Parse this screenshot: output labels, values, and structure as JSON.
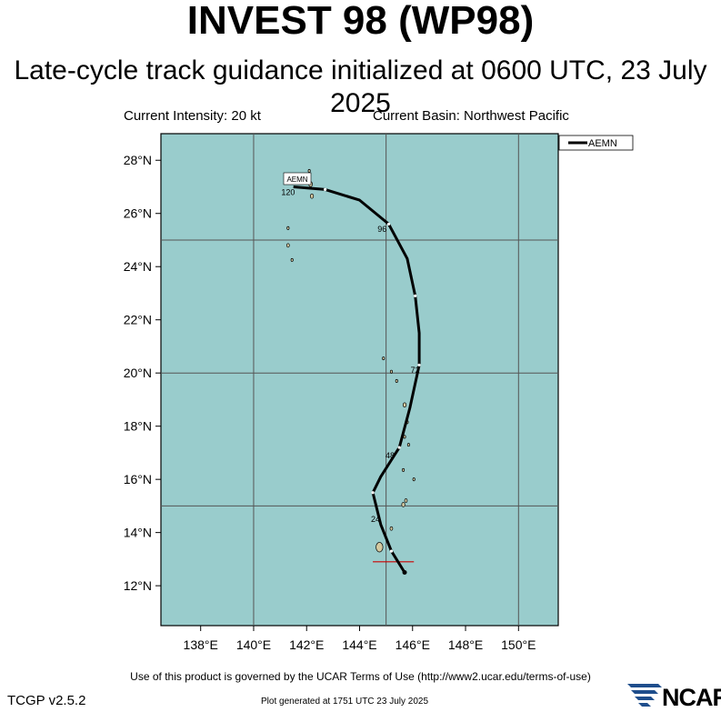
{
  "header": {
    "title": "INVEST 98 (WP98)",
    "subtitle": "Late-cycle track guidance initialized at 0600 UTC, 23 July 2025",
    "intensity": "Current Intensity: 20 kt",
    "basin": "Current Basin: Northwest Pacific"
  },
  "map": {
    "lon_range": [
      136.5,
      151.5
    ],
    "lat_range": [
      10.5,
      29.0
    ],
    "ocean_color": "#99cccc",
    "grid_color": "#555555",
    "track_color": "#000000",
    "marker_color": "#cc0000",
    "lat_ticks": [
      {
        "value": 12,
        "label": "12°N"
      },
      {
        "value": 14,
        "label": "14°N"
      },
      {
        "value": 16,
        "label": "16°N"
      },
      {
        "value": 18,
        "label": "18°N"
      },
      {
        "value": 20,
        "label": "20°N"
      },
      {
        "value": 22,
        "label": "22°N"
      },
      {
        "value": 24,
        "label": "24°N"
      },
      {
        "value": 26,
        "label": "26°N"
      },
      {
        "value": 28,
        "label": "28°N"
      }
    ],
    "lon_ticks": [
      {
        "value": 138,
        "label": "138°E"
      },
      {
        "value": 140,
        "label": "140°E"
      },
      {
        "value": 142,
        "label": "142°E"
      },
      {
        "value": 144,
        "label": "144°E"
      },
      {
        "value": 146,
        "label": "146°E"
      },
      {
        "value": 148,
        "label": "148°E"
      },
      {
        "value": 150,
        "label": "150°E"
      }
    ],
    "gridlines": {
      "lon": [
        140,
        145,
        150
      ],
      "lat": [
        15,
        20,
        25
      ]
    },
    "legend": {
      "entry": "AEMN",
      "placement": "top-right"
    },
    "track_label": "AEMN",
    "track": [
      {
        "lon": 145.7,
        "lat": 12.5
      },
      {
        "lon": 145.2,
        "lat": 13.3
      },
      {
        "lon": 144.8,
        "lat": 14.3
      },
      {
        "lon": 144.5,
        "lat": 15.5
      },
      {
        "lon": 144.8,
        "lat": 16.1
      },
      {
        "lon": 145.5,
        "lat": 17.2
      },
      {
        "lon": 145.9,
        "lat": 18.7
      },
      {
        "lon": 146.25,
        "lat": 20.3
      },
      {
        "lon": 146.25,
        "lat": 21.5
      },
      {
        "lon": 146.1,
        "lat": 22.9
      },
      {
        "lon": 145.8,
        "lat": 24.3
      },
      {
        "lon": 145.1,
        "lat": 25.6
      },
      {
        "lon": 144.0,
        "lat": 26.5
      },
      {
        "lon": 142.7,
        "lat": 26.9
      },
      {
        "lon": 141.5,
        "lat": 27.0
      }
    ],
    "tau_labels": [
      {
        "text": "24",
        "lon": 144.6,
        "lat": 14.4
      },
      {
        "text": "48",
        "lon": 145.15,
        "lat": 16.8
      },
      {
        "text": "72",
        "lon": 146.1,
        "lat": 20.0
      },
      {
        "text": "96",
        "lon": 144.85,
        "lat": 25.3
      },
      {
        "text": "120",
        "lon": 141.3,
        "lat": 26.7
      }
    ],
    "initial_marker": {
      "lon_from": 144.5,
      "lon_to": 146.05,
      "lat": 12.9
    },
    "islands": [
      {
        "lon": 144.75,
        "lat": 13.45,
        "r": 0.13
      },
      {
        "lon": 145.2,
        "lat": 14.15,
        "r": 0.05
      },
      {
        "lon": 145.65,
        "lat": 15.05,
        "r": 0.06
      },
      {
        "lon": 145.75,
        "lat": 15.2,
        "r": 0.05
      },
      {
        "lon": 145.65,
        "lat": 16.35,
        "r": 0.03
      },
      {
        "lon": 146.05,
        "lat": 16.0,
        "r": 0.02
      },
      {
        "lon": 145.85,
        "lat": 17.3,
        "r": 0.02
      },
      {
        "lon": 145.7,
        "lat": 17.6,
        "r": 0.03
      },
      {
        "lon": 145.8,
        "lat": 18.15,
        "r": 0.03
      },
      {
        "lon": 145.7,
        "lat": 18.8,
        "r": 0.06
      },
      {
        "lon": 145.4,
        "lat": 19.7,
        "r": 0.03
      },
      {
        "lon": 145.2,
        "lat": 20.05,
        "r": 0.03
      },
      {
        "lon": 144.9,
        "lat": 20.55,
        "r": 0.02
      },
      {
        "lon": 142.15,
        "lat": 27.1,
        "r": 0.07
      },
      {
        "lon": 142.1,
        "lat": 27.6,
        "r": 0.04
      },
      {
        "lon": 142.2,
        "lat": 26.65,
        "r": 0.06
      },
      {
        "lon": 141.3,
        "lat": 25.45,
        "r": 0.03
      },
      {
        "lon": 141.3,
        "lat": 24.8,
        "r": 0.05
      },
      {
        "lon": 141.45,
        "lat": 24.25,
        "r": 0.02
      }
    ]
  },
  "footer": {
    "terms": "Use of this product is governed by the UCAR Terms of Use (http://www2.ucar.edu/terms-of-use)",
    "version": "TCGP v2.5.2",
    "generated": "Plot generated at 1751 UTC   23 July 2025",
    "logo_text": "NCAR"
  }
}
